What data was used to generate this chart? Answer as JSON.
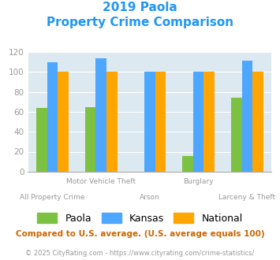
{
  "title_line1": "2019 Paola",
  "title_line2": "Property Crime Comparison",
  "categories": [
    "All Property Crime",
    "Motor Vehicle Theft",
    "Arson",
    "Burglary",
    "Larceny & Theft"
  ],
  "series": {
    "Paola": [
      64,
      65,
      0,
      16,
      74
    ],
    "Kansas": [
      110,
      114,
      100,
      100,
      111
    ],
    "National": [
      100,
      100,
      100,
      100,
      100
    ]
  },
  "colors": {
    "Paola": "#7dc142",
    "Kansas": "#4da6ff",
    "National": "#ffa500"
  },
  "ylim": [
    0,
    120
  ],
  "yticks": [
    0,
    20,
    40,
    60,
    80,
    100,
    120
  ],
  "bar_width": 0.22,
  "title_color": "#2196f3",
  "axis_bg_color": "#dce9f0",
  "fig_bg_color": "#ffffff",
  "tick_color": "#999999",
  "legend_fontsize": 9,
  "footnote1": "Compared to U.S. average. (U.S. average equals 100)",
  "footnote2": "© 2025 CityRating.com - https://www.cityrating.com/crime-statistics/",
  "footnote1_color": "#cc6600",
  "footnote2_color": "#999999",
  "tick_labels_upper": [
    "",
    "Motor Vehicle Theft",
    "",
    "Burglary",
    ""
  ],
  "tick_labels_lower": [
    "All Property Crime",
    "",
    "Arson",
    "",
    "Larceny & Theft"
  ]
}
